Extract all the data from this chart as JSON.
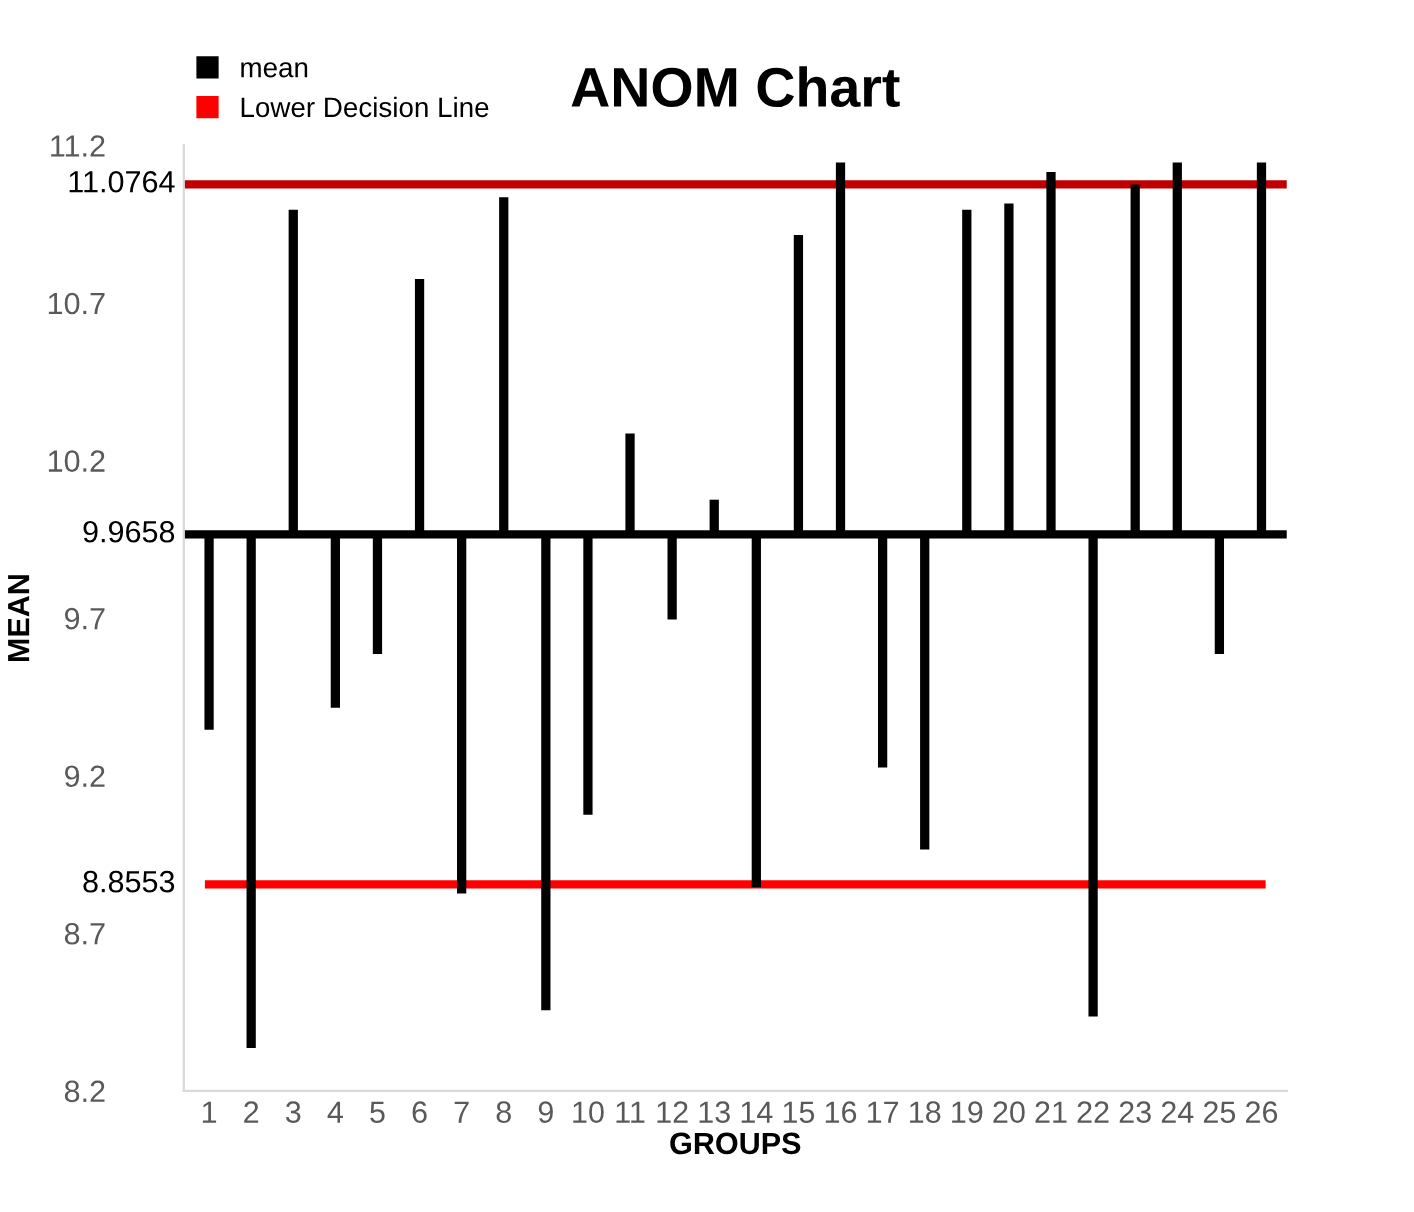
{
  "chart_data": {
    "type": "bar",
    "title": "ANOM Chart",
    "xlabel": "GROUPS",
    "ylabel": "MEAN",
    "categories": [
      "1",
      "2",
      "3",
      "4",
      "5",
      "6",
      "7",
      "8",
      "9",
      "10",
      "11",
      "12",
      "13",
      "14",
      "15",
      "16",
      "17",
      "18",
      "19",
      "20",
      "21",
      "22",
      "23",
      "24",
      "25",
      "26"
    ],
    "series": [
      {
        "name": "mean",
        "color": "#000000",
        "base": [
          9.9658,
          9.9658,
          9.9658,
          9.9658,
          9.9658,
          9.9658,
          9.9658,
          9.9658,
          9.9658,
          9.9658,
          9.9658,
          9.9658,
          9.9658,
          9.9658,
          9.9658,
          9.9658,
          9.9658,
          9.9658,
          9.9658,
          9.9658,
          9.9658,
          9.9658,
          9.9658,
          9.9658,
          9.9658,
          9.9658
        ],
        "values": [
          -0.62,
          -1.63,
          1.03,
          -0.55,
          -0.38,
          0.81,
          -1.14,
          1.07,
          -1.51,
          -0.89,
          0.32,
          -0.27,
          0.11,
          -1.12,
          0.95,
          1.18,
          -0.74,
          -1.0,
          1.03,
          1.05,
          1.15,
          -1.53,
          1.11,
          1.18,
          -0.38,
          1.18
        ]
      },
      {
        "name": "Lower Decision Line",
        "type": "line",
        "color": "#ff0000",
        "values": [
          8.8553,
          8.8553,
          8.8553,
          8.8553,
          8.8553,
          8.8553,
          8.8553,
          8.8553,
          8.8553,
          8.8553,
          8.8553,
          8.8553,
          8.8553,
          8.8553,
          8.8553,
          8.8553,
          8.8553,
          8.8553,
          8.8553,
          8.8553,
          8.8553,
          8.8553,
          8.8553,
          8.8553,
          8.8553,
          8.8553
        ],
        "value_labels": [
          "8.8553",
          null,
          null,
          null,
          null,
          null,
          null,
          null,
          null,
          null,
          null,
          null,
          null,
          null,
          null,
          null,
          null,
          null,
          null,
          null,
          null,
          null,
          null,
          null,
          null,
          null
        ]
      }
    ],
    "ref_lines": [
      {
        "axis": "y",
        "value": 11.0764,
        "label": "11.0764",
        "color": "#c00000"
      },
      {
        "axis": "y",
        "value": 9.9658,
        "label": "9.9658",
        "color": "#000000"
      }
    ],
    "ylim": [
      8.2,
      11.2
    ],
    "yticks": [
      8.2,
      8.7,
      9.2,
      9.7,
      10.2,
      10.7,
      11.2
    ],
    "grid": false,
    "legend": "top left",
    "marker": "none"
  }
}
